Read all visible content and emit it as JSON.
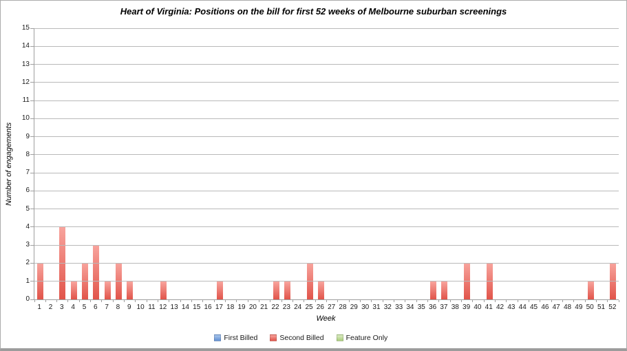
{
  "window": {
    "background": "#ffffff",
    "border_color": "#ababab",
    "bottom_edge_color": "#9c9c9c"
  },
  "chart_data": {
    "type": "bar",
    "title": "Heart of Virginia: Positions on the bill for first 52 weeks of Melbourne suburban screenings",
    "xlabel": "Week",
    "ylabel": "Number of engagements",
    "ylim": [
      0,
      15
    ],
    "y_tick_step": 1,
    "grid": true,
    "gridline_color": "#b9b9b9",
    "axis_color": "#9e9e9e",
    "legend_position": "bottom",
    "categories": [
      1,
      2,
      3,
      4,
      5,
      6,
      7,
      8,
      9,
      10,
      11,
      12,
      13,
      14,
      15,
      16,
      17,
      18,
      19,
      20,
      21,
      22,
      23,
      24,
      25,
      26,
      27,
      28,
      29,
      30,
      31,
      32,
      33,
      34,
      35,
      36,
      37,
      38,
      39,
      40,
      41,
      42,
      43,
      44,
      45,
      46,
      47,
      48,
      49,
      50,
      51,
      52
    ],
    "series": [
      {
        "name": "First Billed",
        "color_top": "#aac6ec",
        "color_bottom": "#6290d3",
        "values": [
          0,
          0,
          0,
          0,
          0,
          0,
          0,
          0,
          0,
          0,
          0,
          0,
          0,
          0,
          0,
          0,
          0,
          0,
          0,
          0,
          0,
          0,
          0,
          0,
          0,
          0,
          0,
          0,
          0,
          0,
          0,
          0,
          0,
          0,
          0,
          0,
          0,
          0,
          0,
          0,
          0,
          0,
          0,
          0,
          0,
          0,
          0,
          0,
          0,
          0,
          0,
          0
        ]
      },
      {
        "name": "Second Billed",
        "color_top": "#f8a49d",
        "color_bottom": "#e1544a",
        "values": [
          2,
          0,
          4,
          1,
          2,
          3,
          1,
          2,
          1,
          0,
          0,
          1,
          0,
          0,
          0,
          0,
          1,
          0,
          0,
          0,
          0,
          1,
          1,
          0,
          2,
          1,
          0,
          0,
          0,
          0,
          0,
          0,
          0,
          0,
          0,
          1,
          1,
          0,
          2,
          0,
          2,
          0,
          0,
          0,
          0,
          0,
          0,
          0,
          0,
          1,
          0,
          2
        ]
      },
      {
        "name": "Feature Only",
        "color_top": "#ddecc5",
        "color_bottom": "#a9cd7d",
        "values": [
          0,
          0,
          0,
          0,
          0,
          0,
          0,
          0,
          0,
          0,
          0,
          0,
          0,
          0,
          0,
          0,
          0,
          0,
          0,
          0,
          0,
          0,
          0,
          0,
          0,
          0,
          0,
          0,
          0,
          0,
          0,
          0,
          0,
          0,
          0,
          0,
          0,
          0,
          0,
          0,
          0,
          0,
          0,
          0,
          0,
          0,
          0,
          0,
          0,
          0,
          0,
          0
        ]
      }
    ]
  }
}
